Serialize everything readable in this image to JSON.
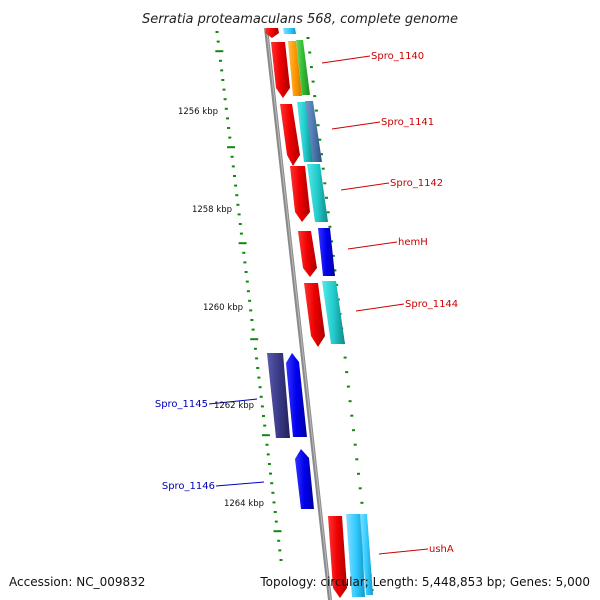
{
  "title": "Serratia proteamaculans 568, complete genome",
  "footer": {
    "accession": "Accession: NC_009832",
    "topology": "Topology: circular; Length: 5,448,853 bp; Genes: 5,000"
  },
  "kbp_labels": [
    "1256 kbp",
    "1258 kbp",
    "1260 kbp",
    "1262 kbp",
    "1264 kbp"
  ],
  "gene_labels": [
    "Spro_1140",
    "Spro_1141",
    "Spro_1142",
    "hemH",
    "Spro_1144",
    "Spro_1145",
    "Spro_1146",
    "ushA"
  ],
  "colors": {
    "red": "#ff0000",
    "cyan": "#22cccc",
    "sky": "#33ccff",
    "blue": "#0000ee",
    "navy": "#3a3a88",
    "steel": "#4f7ab0",
    "orange": "#ff9900",
    "green": "#33bb33",
    "tick_green": "#118811",
    "backbone": "#888888",
    "label_red": "#cc0000",
    "label_blue": "#0000bb"
  }
}
